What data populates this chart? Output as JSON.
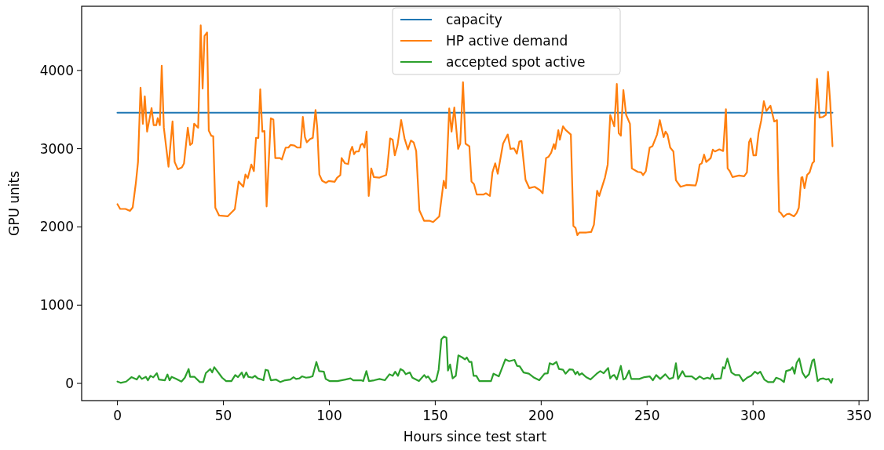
{
  "chart_data": {
    "type": "line",
    "xlabel": "Hours since test start",
    "ylabel": "GPU units",
    "xlim": [
      -16.9,
      354.4
    ],
    "ylim": [
      -220,
      4820
    ],
    "xticks": [
      0,
      50,
      100,
      150,
      200,
      250,
      300,
      350
    ],
    "yticks": [
      0,
      1000,
      2000,
      3000,
      4000
    ],
    "grid": false,
    "legend": "top",
    "line_style": "solid",
    "marker": "none",
    "series": [
      {
        "name": "capacity",
        "color": "#1f77b4",
        "x": [
          0,
          337.5
        ],
        "values": [
          3460,
          3460
        ]
      },
      {
        "name": "HP active demand",
        "color": "#ff7f0e",
        "x": [
          0,
          1.3,
          3.8,
          5.9,
          7.2,
          8.7,
          9.7,
          10.9,
          12,
          12.9,
          14,
          16.1,
          17.1,
          18.3,
          19,
          20,
          20.9,
          21.9,
          24.1,
          26,
          27,
          28.5,
          30.4,
          31.4,
          33.2,
          34.3,
          35.3,
          36.2,
          38.1,
          39.3,
          40.2,
          41.1,
          42.3,
          43.1,
          44.3,
          45.2,
          46.2,
          48,
          52,
          55.4,
          57.2,
          59.4,
          60.4,
          61.5,
          63.2,
          64.4,
          65.4,
          66.5,
          67.4,
          68.4,
          69.4,
          70.4,
          72.4,
          73.6,
          74.5,
          76.7,
          77.6,
          79.4,
          80.7,
          81.7,
          83.5,
          84.8,
          86.4,
          87.5,
          88.5,
          89.4,
          91,
          92.2,
          93.5,
          94.3,
          95.3,
          96.6,
          98.4,
          99.7,
          102.5,
          103.7,
          105.2,
          105.8,
          107.4,
          108.9,
          109.9,
          110.8,
          111.7,
          112.6,
          113.9,
          114.8,
          115.7,
          116.6,
          117.6,
          118.6,
          119.8,
          121,
          123.7,
          126.8,
          127.4,
          128.7,
          129.9,
          130.9,
          132.2,
          133.9,
          135.5,
          137.1,
          138.5,
          139.8,
          141,
          142.5,
          144.7,
          147.2,
          149,
          151.9,
          154,
          155,
          156.6,
          157.7,
          159,
          160.8,
          161.8,
          163.1,
          164.3,
          166.1,
          167.1,
          168.3,
          169.6,
          172.7,
          173.9,
          175.8,
          177,
          178.3,
          179.5,
          182,
          184.2,
          185.5,
          187.2,
          188.5,
          189.7,
          190.7,
          192.6,
          194.4,
          196.9,
          199.4,
          200.7,
          202.3,
          203.5,
          204.7,
          206,
          206.6,
          208.1,
          208.8,
          210.3,
          211.5,
          214,
          215.2,
          216.2,
          217.1,
          218,
          221.4,
          223.6,
          224.9,
          226.4,
          227.4,
          230.1,
          231.4,
          232.6,
          234.5,
          235.7,
          236.6,
          237.6,
          238.8,
          240.1,
          241.9,
          242.8,
          245.6,
          247.2,
          248.1,
          249.4,
          251.2,
          252.5,
          254.7,
          256,
          257.8,
          258.7,
          259.6,
          260.9,
          262.4,
          263.6,
          265.8,
          268.6,
          272.9,
          273.6,
          274.8,
          275.8,
          276.9,
          277.9,
          280,
          281,
          282,
          284.1,
          285.9,
          287.2,
          288,
          289,
          290.3,
          293.4,
          295.8,
          297.1,
          298.1,
          298.9,
          300.2,
          301.4,
          302.6,
          303.9,
          305.1,
          306.3,
          308.2,
          310,
          311.3,
          312.3,
          313.1,
          314.4,
          315.9,
          317.1,
          319.3,
          320.6,
          321.6,
          322.8,
          323.3,
          324.3,
          325.5,
          326.7,
          328,
          328.8,
          329.2,
          330.2,
          331.4,
          332.9,
          334.4,
          335.4,
          336.4,
          337.5
        ],
        "values": [
          2290,
          2230,
          2230,
          2205,
          2250,
          2565,
          2830,
          3780,
          3318,
          3670,
          3218,
          3519,
          3300,
          3300,
          3390,
          3300,
          4060,
          3268,
          2770,
          3348,
          2830,
          2737,
          2760,
          2810,
          3268,
          3048,
          3070,
          3318,
          3268,
          4575,
          3768,
          4441,
          4485,
          3231,
          3165,
          3158,
          2245,
          2145,
          2135,
          2228,
          2580,
          2513,
          2670,
          2623,
          2797,
          2713,
          3138,
          3138,
          3760,
          3218,
          3225,
          2262,
          3388,
          3372,
          2880,
          2880,
          2863,
          3014,
          3014,
          3048,
          3041,
          3014,
          3014,
          3405,
          3148,
          3081,
          3125,
          3138,
          3493,
          3268,
          2670,
          2590,
          2563,
          2587,
          2577,
          2630,
          2663,
          2880,
          2813,
          2803,
          2964,
          3024,
          2930,
          2964,
          2964,
          3048,
          3064,
          3014,
          3218,
          2396,
          2747,
          2637,
          2630,
          2663,
          2764,
          3131,
          3114,
          2914,
          3048,
          3365,
          3131,
          2991,
          3104,
          3081,
          2970,
          2212,
          2079,
          2079,
          2062,
          2135,
          2590,
          2496,
          3515,
          3218,
          3526,
          2997,
          3064,
          3850,
          3064,
          3031,
          2580,
          2546,
          2413,
          2413,
          2430,
          2396,
          2697,
          2813,
          2680,
          3064,
          3181,
          2997,
          3004,
          2937,
          3091,
          3098,
          2603,
          2496,
          2513,
          2470,
          2430,
          2880,
          2897,
          2947,
          3058,
          2997,
          3235,
          3114,
          3285,
          3241,
          3181,
          2012,
          1989,
          1895,
          1929,
          1929,
          1936,
          2029,
          2463,
          2396,
          2630,
          2797,
          3432,
          3285,
          3826,
          3198,
          3165,
          3749,
          3432,
          3318,
          2747,
          2703,
          2697,
          2663,
          2713,
          3014,
          3031,
          3181,
          3365,
          3148,
          3218,
          3181,
          3014,
          2964,
          2597,
          2513,
          2536,
          2530,
          2597,
          2797,
          2813,
          2924,
          2830,
          2880,
          2987,
          2964,
          2991,
          2970,
          3505,
          2747,
          2713,
          2637,
          2657,
          2647,
          2697,
          3081,
          3131,
          2914,
          2914,
          3198,
          3365,
          3606,
          3482,
          3549,
          3348,
          3365,
          2195,
          2178,
          2128,
          2162,
          2168,
          2135,
          2178,
          2245,
          2630,
          2637,
          2496,
          2663,
          2697,
          2813,
          2837,
          3365,
          3893,
          3398,
          3405,
          3432,
          3983,
          3599,
          3031
        ]
      },
      {
        "name": "accepted spot active",
        "color": "#2ca02c",
        "x": [
          0,
          1.5,
          4.1,
          6.6,
          9.1,
          10.3,
          11.5,
          13.4,
          14.4,
          15.6,
          16.9,
          18.6,
          19.6,
          22.4,
          23.6,
          24.6,
          25.6,
          27.7,
          30.2,
          31.8,
          33.6,
          34.3,
          36.4,
          38.9,
          40.5,
          41.7,
          43.8,
          44.7,
          45.7,
          47.6,
          49.4,
          51.3,
          53.8,
          55.6,
          56.9,
          58.7,
          59.6,
          60.8,
          61.8,
          63.7,
          64.9,
          66.2,
          68,
          68.9,
          69.9,
          71.1,
          72.4,
          74.8,
          76.9,
          79.1,
          81.6,
          83.1,
          84.3,
          85.9,
          87.1,
          89,
          90.8,
          92.1,
          93.9,
          95.2,
          97.4,
          98.3,
          100.1,
          103.8,
          107.6,
          110,
          111.3,
          115,
          116,
          117.5,
          118.7,
          121.2,
          123.7,
          126.2,
          128.4,
          129.9,
          131.1,
          132.4,
          133.6,
          134.9,
          136.1,
          138,
          139.2,
          142.3,
          144.8,
          145.8,
          146.6,
          148.5,
          150.4,
          151.6,
          152.9,
          154.1,
          155.3,
          156,
          157,
          158.2,
          159.7,
          160.9,
          162.8,
          164,
          164.9,
          166.1,
          167.1,
          168.1,
          169.4,
          170.8,
          174.5,
          176.3,
          177.5,
          180,
          183.1,
          184.9,
          187.4,
          188.6,
          189.9,
          191.7,
          194.2,
          196.7,
          199.1,
          201.6,
          203.1,
          204,
          205.5,
          207.2,
          208.4,
          210.3,
          211.5,
          213.4,
          215,
          216.2,
          217.1,
          218,
          219.2,
          221.2,
          223.3,
          224.9,
          226.2,
          227.9,
          229.5,
          231.6,
          232.6,
          233.6,
          234.5,
          235.7,
          237.6,
          238.8,
          239.8,
          241.5,
          242.5,
          246.3,
          248.7,
          251.2,
          252.7,
          254.3,
          256.2,
          258.6,
          260.5,
          262.3,
          263.6,
          264.6,
          266.7,
          268,
          271.1,
          273,
          274.8,
          276.7,
          278.5,
          279.8,
          280.8,
          281.7,
          284.8,
          285.8,
          286.6,
          287.9,
          289.8,
          291.6,
          293.5,
          295.3,
          297.2,
          299.1,
          300.9,
          302.2,
          303.4,
          305.3,
          307.1,
          309.6,
          310.9,
          313.1,
          314.6,
          315.6,
          317.7,
          318.6,
          319.6,
          320.6,
          321.8,
          323.3,
          324.8,
          326.4,
          328,
          328.8,
          330.5,
          331.7,
          333.2,
          334.4,
          335.7,
          336.9,
          337.5
        ],
        "values": [
          23,
          7,
          23,
          80,
          50,
          97,
          57,
          84,
          40,
          97,
          77,
          130,
          50,
          40,
          114,
          40,
          84,
          57,
          23,
          73,
          184,
          84,
          84,
          17,
          17,
          130,
          184,
          140,
          207,
          140,
          73,
          30,
          30,
          107,
          80,
          140,
          73,
          140,
          84,
          73,
          97,
          64,
          50,
          40,
          174,
          164,
          40,
          50,
          17,
          40,
          50,
          80,
          57,
          64,
          90,
          73,
          80,
          90,
          274,
          157,
          150,
          57,
          30,
          30,
          50,
          64,
          40,
          40,
          30,
          157,
          30,
          40,
          57,
          40,
          117,
          97,
          150,
          97,
          184,
          164,
          117,
          140,
          73,
          30,
          107,
          73,
          90,
          17,
          40,
          174,
          565,
          598,
          585,
          164,
          241,
          64,
          97,
          358,
          331,
          307,
          331,
          274,
          274,
          97,
          97,
          30,
          30,
          30,
          124,
          90,
          307,
          284,
          301,
          224,
          217,
          140,
          124,
          73,
          40,
          124,
          130,
          257,
          241,
          274,
          184,
          174,
          124,
          180,
          174,
          117,
          150,
          107,
          130,
          80,
          50,
          90,
          124,
          157,
          130,
          197,
          64,
          97,
          107,
          50,
          224,
          50,
          64,
          164,
          57,
          57,
          80,
          90,
          40,
          107,
          57,
          117,
          57,
          73,
          257,
          57,
          157,
          90,
          90,
          50,
          90,
          57,
          73,
          57,
          117,
          57,
          64,
          207,
          190,
          318,
          140,
          107,
          107,
          30,
          73,
          97,
          150,
          124,
          150,
          50,
          17,
          17,
          73,
          50,
          17,
          157,
          174,
          207,
          124,
          264,
          318,
          140,
          73,
          117,
          291,
          307,
          30,
          57,
          64,
          50,
          57,
          7,
          57
        ]
      }
    ]
  }
}
